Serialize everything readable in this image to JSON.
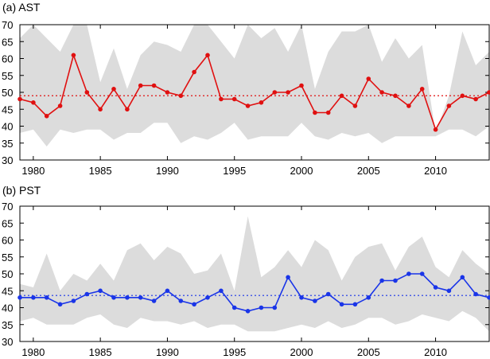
{
  "chart_data": [
    {
      "type": "line",
      "title": "(a) AST",
      "x": [
        1979,
        1980,
        1981,
        1982,
        1983,
        1984,
        1985,
        1986,
        1987,
        1988,
        1989,
        1990,
        1991,
        1992,
        1993,
        1994,
        1995,
        1996,
        1997,
        1998,
        1999,
        2000,
        2001,
        2002,
        2003,
        2004,
        2005,
        2006,
        2007,
        2008,
        2009,
        2010,
        2011,
        2012,
        2013,
        2014
      ],
      "values": [
        48,
        47,
        43,
        46,
        61,
        50,
        45,
        51,
        45,
        52,
        52,
        50,
        49,
        56,
        61,
        48,
        48,
        46,
        47,
        50,
        50,
        52,
        44,
        44,
        49,
        46,
        54,
        50,
        49,
        46,
        51,
        39,
        46,
        49,
        48,
        50
      ],
      "mean": 49,
      "band_upper": [
        66,
        70,
        66,
        62,
        70,
        70,
        53,
        63,
        51,
        61,
        65,
        64,
        62,
        70,
        70,
        65,
        60,
        70,
        66,
        69,
        62,
        70,
        51,
        62,
        68,
        68,
        70,
        59,
        66,
        60,
        64,
        38,
        49,
        68,
        58,
        62
      ],
      "band_lower": [
        38,
        39,
        34,
        39,
        38,
        39,
        39,
        36,
        38,
        38,
        41,
        41,
        35,
        37,
        36,
        38,
        41,
        36,
        37,
        37,
        37,
        41,
        37,
        36,
        38,
        37,
        38,
        35,
        37,
        37,
        37,
        37,
        39,
        39,
        37,
        40
      ],
      "xticks": [
        1980,
        1985,
        1990,
        1995,
        2000,
        2005,
        2010
      ],
      "yticks": [
        30,
        35,
        40,
        45,
        50,
        55,
        60,
        65,
        70
      ],
      "xlim": [
        1979,
        2014
      ],
      "ylim": [
        30,
        70
      ],
      "color": "#e01010"
    },
    {
      "type": "line",
      "title": "(b) PST",
      "x": [
        1979,
        1980,
        1981,
        1982,
        1983,
        1984,
        1985,
        1986,
        1987,
        1988,
        1989,
        1990,
        1991,
        1992,
        1993,
        1994,
        1995,
        1996,
        1997,
        1998,
        1999,
        2000,
        2001,
        2002,
        2003,
        2004,
        2005,
        2006,
        2007,
        2008,
        2009,
        2010,
        2011,
        2012,
        2013,
        2014
      ],
      "values": [
        43,
        43,
        43,
        41,
        42,
        44,
        45,
        43,
        43,
        43,
        42,
        45,
        42,
        41,
        43,
        45,
        40,
        39,
        40,
        40,
        49,
        43,
        42,
        44,
        41,
        41,
        43,
        48,
        48,
        50,
        50,
        46,
        45,
        49,
        44,
        43
      ],
      "mean": 43.6,
      "band_upper": [
        47,
        46,
        56,
        45,
        50,
        48,
        53,
        48,
        57,
        59,
        54,
        58,
        56,
        50,
        51,
        56,
        45,
        67,
        49,
        52,
        57,
        52,
        60,
        57,
        48,
        55,
        58,
        59,
        51,
        58,
        61,
        52,
        49,
        57,
        53,
        50
      ],
      "band_lower": [
        36,
        37,
        35,
        35,
        35,
        37,
        38,
        35,
        34,
        37,
        36,
        36,
        35,
        36,
        34,
        35,
        35,
        33,
        33,
        33,
        34,
        35,
        34,
        36,
        34,
        35,
        37,
        37,
        35,
        36,
        38,
        37,
        36,
        39,
        37,
        33
      ],
      "xticks": [
        1980,
        1985,
        1990,
        1995,
        2000,
        2005,
        2010
      ],
      "yticks": [
        30,
        35,
        40,
        45,
        50,
        55,
        60,
        65,
        70
      ],
      "xlim": [
        1979,
        2014
      ],
      "ylim": [
        30,
        70
      ],
      "color": "#1a35e8"
    }
  ],
  "colors": {
    "band": "#dcdcdc",
    "axis": "#000000"
  }
}
